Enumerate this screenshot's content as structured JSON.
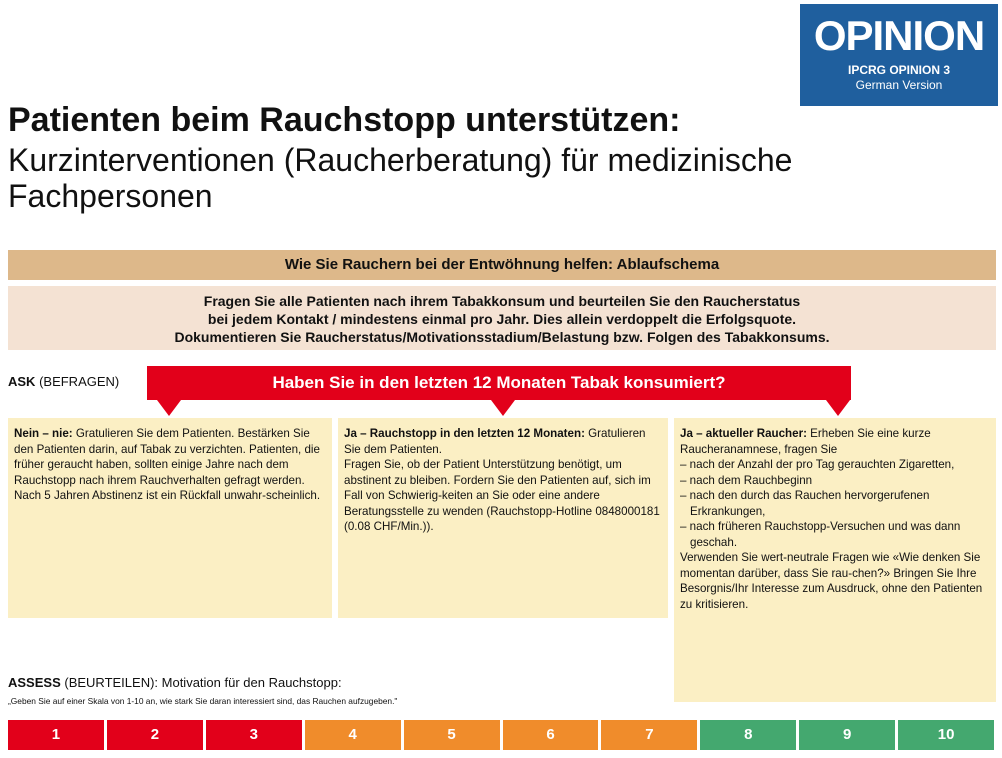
{
  "badge": {
    "title": "OPINION",
    "line1": "IPCRG OPINION 3",
    "line2": "German Version"
  },
  "title": {
    "bold": "Patienten beim Rauchstopp unterstützen:",
    "subtitle": "Kurzinterventionen (Raucherberatung) für medizinische Fachpersonen"
  },
  "flow_header": "Wie Sie Rauchern bei der Entwöhnung helfen: Ablaufschema",
  "ask_all": [
    "Fragen Sie alle Patienten nach ihrem Tabakkonsum und beurteilen Sie den Raucherstatus",
    "bei jedem Kontakt / mindestens einmal pro Jahr. Dies allein verdoppelt die Erfolgsquote.",
    "Dokumentieren Sie Raucherstatus/Motivationsstadium/Belastung bzw. Folgen des Tabakkonsums."
  ],
  "ask": {
    "bold": "ASK",
    "rest": " (BEFRAGEN)"
  },
  "question": "Haben Sie in den letzten 12 Monaten Tabak konsumiert?",
  "columns": {
    "never": {
      "bold": "Nein – nie:",
      "text": " Gratulieren Sie dem Patienten. Bestärken Sie den Patienten darin, auf Tabak zu verzichten. Patienten, die früher geraucht haben, sollten einige Jahre nach dem Rauchstopp nach ihrem Rauchverhalten gefragt werden.",
      "text2": "Nach 5 Jahren Abstinenz ist ein Rückfall unwahr-scheinlich."
    },
    "quit": {
      "bold": "Ja – Rauchstopp in den letzten 12 Monaten:",
      "text": " Gratulieren Sie dem Patienten.",
      "text2": "Fragen Sie, ob der Patient Unterstützung benötigt, um abstinent zu bleiben. Fordern Sie den Patienten auf, sich im Fall von Schwierig-keiten an Sie oder eine andere Beratungsstelle zu wenden (Rauchstopp-Hotline 0848000181 (0.08 CHF/Min.))."
    },
    "current": {
      "bold": "Ja – aktueller Raucher:",
      "text": " Erheben Sie eine kurze Raucheranamnese, fragen Sie",
      "items": [
        "– nach der Anzahl der pro Tag gerauchten Zigaretten,",
        "– nach dem Rauchbeginn",
        "– nach den durch das Rauchen hervorgerufenen Erkrankungen,",
        "– nach früheren Rauchstopp-Versuchen und was dann geschah."
      ],
      "text2": "Verwenden Sie wert-neutrale Fragen wie «Wie denken Sie momentan darüber, dass Sie rau-chen?» Bringen Sie Ihre Besorgnis/Ihr Interesse zum Ausdruck, ohne den Patienten zu kritisieren."
    }
  },
  "assess": {
    "bold": "ASSESS",
    "rest": " (BEURTEILEN): Motivation für den Rauchstopp:"
  },
  "assess_quote": "„Geben Sie auf einer Skala von 1-10 an, wie stark Sie daran interessiert sind, das Rauchen aufzugeben.\"",
  "scale": [
    {
      "label": "1",
      "color": "#e2001a"
    },
    {
      "label": "2",
      "color": "#e2001a"
    },
    {
      "label": "3",
      "color": "#e2001a"
    },
    {
      "label": "4",
      "color": "#f08c2b"
    },
    {
      "label": "5",
      "color": "#f08c2b"
    },
    {
      "label": "6",
      "color": "#f08c2b"
    },
    {
      "label": "7",
      "color": "#f08c2b"
    },
    {
      "label": "8",
      "color": "#44a86f"
    },
    {
      "label": "9",
      "color": "#44a86f"
    },
    {
      "label": "10",
      "color": "#44a86f"
    }
  ]
}
